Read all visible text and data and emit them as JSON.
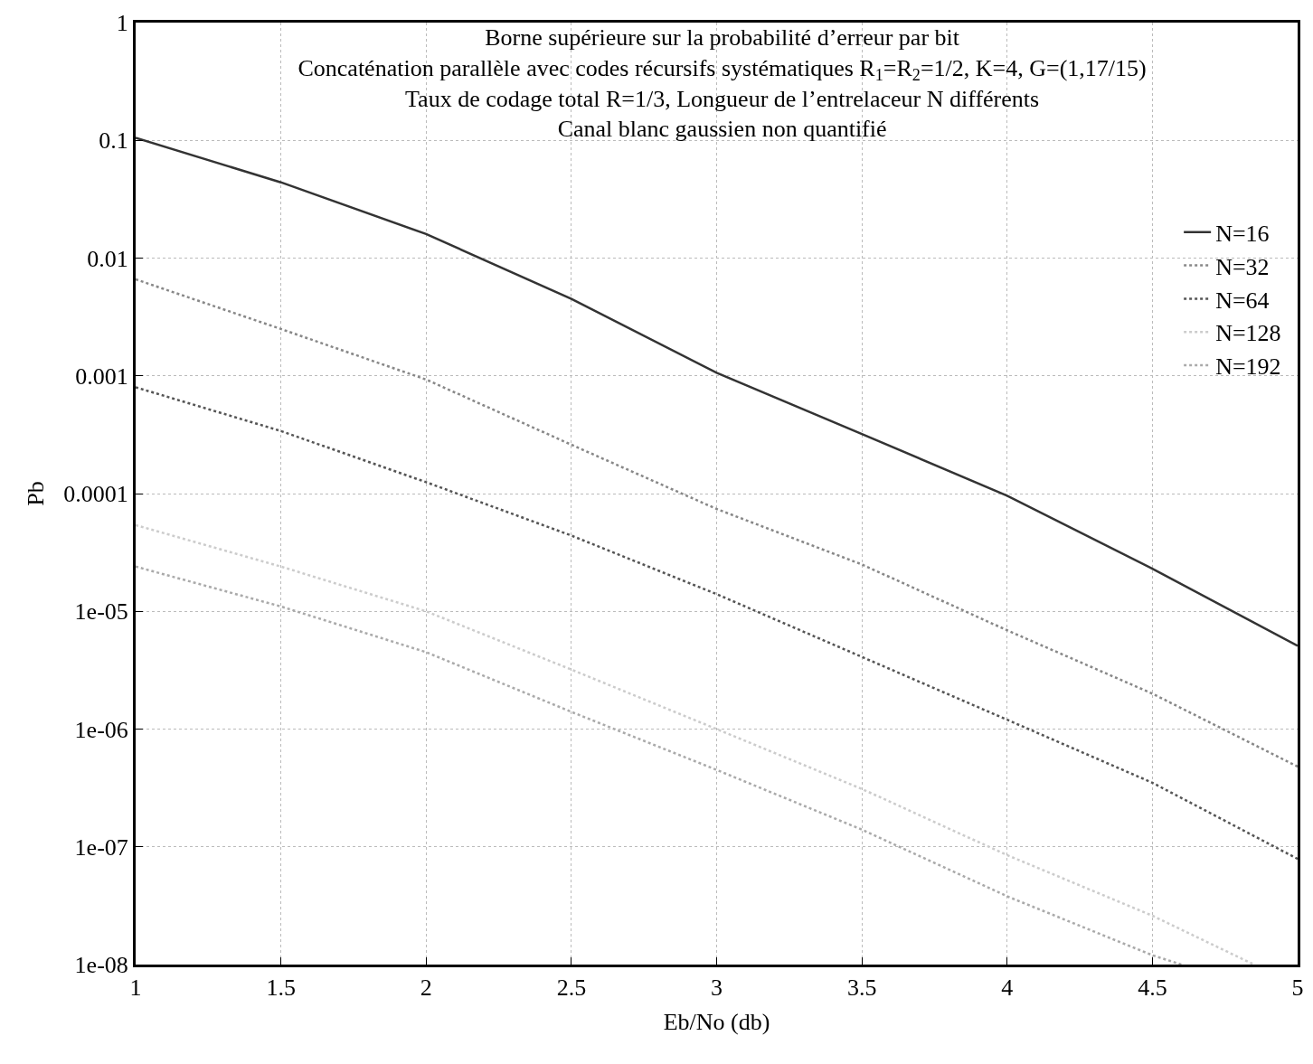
{
  "chart_data": {
    "type": "line",
    "title": "Borne supérieure sur la probabilité d’erreur par bit\nConcaténation parallèle avec codes récursifs systématiques R$_{1}$=R$_{2}$=1/2, K=4, G=(1,17/15)\nTaux de codage total R=1/3, Longueur de l’entrelaceur N différents\nCanal blanc gaussien non quantifié",
    "xlabel": "Eb/No (db)",
    "ylabel": "Pb",
    "log": "y",
    "grid": true,
    "legend": "top right",
    "marker": "none",
    "xlim": [
      1,
      5
    ],
    "xticks": [
      1,
      1.5,
      2,
      2.5,
      3,
      3.5,
      4,
      4.5,
      5
    ],
    "ylim": [
      1e-08,
      1
    ],
    "yticks": [
      {
        "value": 1e-08,
        "label": "1e-08"
      },
      {
        "value": 1e-07,
        "label": "1e-07"
      },
      {
        "value": 1e-06,
        "label": "1e-06"
      },
      {
        "value": 1e-05,
        "label": "1e-05"
      },
      {
        "value": 0.0001,
        "label": "0.0001"
      },
      {
        "value": 0.001,
        "label": "0.001"
      },
      {
        "value": 0.01,
        "label": "0.01"
      },
      {
        "value": 0.1,
        "label": "0.1"
      },
      {
        "value": 1,
        "label": "1"
      }
    ],
    "series": [
      {
        "name": "N=16",
        "color": "#333333",
        "line_style": "solid",
        "x": [
          1,
          1.5,
          2,
          2.5,
          3,
          3.5,
          4,
          4.5,
          5
        ],
        "values": [
          0.105,
          0.044,
          0.016,
          0.0045,
          0.00106,
          0.00032,
          9.6e-05,
          2.3e-05,
          5.1e-06
        ]
      },
      {
        "name": "N=32",
        "color": "#888888",
        "line_style": "dotted",
        "x": [
          1,
          1.5,
          2,
          2.5,
          3,
          3.5,
          4,
          4.5,
          5
        ],
        "values": [
          0.0066,
          0.0025,
          0.00093,
          0.00026,
          7.4e-05,
          2.5e-05,
          6.9e-06,
          2e-06,
          4.8e-07
        ]
      },
      {
        "name": "N=64",
        "color": "#555555",
        "line_style": "dotted",
        "x": [
          1,
          1.5,
          2,
          2.5,
          3,
          3.5,
          4,
          4.5,
          5
        ],
        "values": [
          0.0008,
          0.00034,
          0.000125,
          4.4e-05,
          1.4e-05,
          4.1e-06,
          1.2e-06,
          3.5e-07,
          7.9e-08
        ]
      },
      {
        "name": "N=128",
        "color": "#cccccc",
        "line_style": "dotted",
        "x": [
          1,
          1.5,
          2,
          2.5,
          3,
          3.5,
          4,
          4.5,
          4.85
        ],
        "values": [
          5.4e-05,
          2.4e-05,
          1e-05,
          3.2e-06,
          1e-06,
          3.1e-07,
          8.5e-08,
          2.6e-08,
          1e-08
        ]
      },
      {
        "name": "N=192",
        "color": "#aaaaaa",
        "line_style": "dotted",
        "x": [
          1,
          1.5,
          2,
          2.5,
          3,
          3.5,
          4,
          4.5,
          4.6
        ],
        "values": [
          2.4e-05,
          1.1e-05,
          4.5e-06,
          1.4e-06,
          4.5e-07,
          1.4e-07,
          3.8e-08,
          1.2e-08,
          1e-08
        ]
      }
    ]
  }
}
